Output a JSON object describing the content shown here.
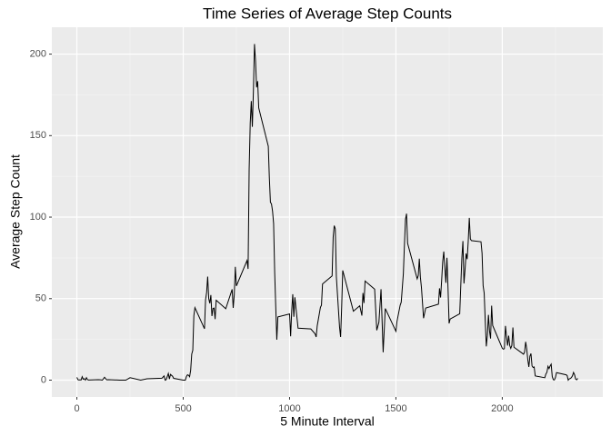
{
  "chart_data": {
    "type": "line",
    "title": "Time Series of Average Step Counts",
    "xlabel": "5 Minute Interval",
    "ylabel": "Average Step Count",
    "x": [
      0,
      5,
      10,
      15,
      20,
      25,
      30,
      35,
      40,
      45,
      50,
      55,
      100,
      110,
      120,
      130,
      140,
      150,
      200,
      230,
      250,
      300,
      330,
      400,
      410,
      415,
      420,
      430,
      435,
      440,
      450,
      455,
      500,
      510,
      515,
      520,
      525,
      530,
      535,
      540,
      545,
      550,
      555,
      600,
      605,
      610,
      615,
      620,
      625,
      630,
      635,
      640,
      645,
      650,
      655,
      700,
      730,
      735,
      740,
      745,
      750,
      800,
      805,
      810,
      815,
      820,
      825,
      830,
      835,
      840,
      845,
      850,
      855,
      900,
      905,
      910,
      915,
      920,
      925,
      930,
      935,
      940,
      945,
      1000,
      1005,
      1010,
      1015,
      1020,
      1025,
      1030,
      1040,
      1100,
      1120,
      1125,
      1130,
      1145,
      1150,
      1155,
      1200,
      1205,
      1210,
      1215,
      1220,
      1235,
      1240,
      1245,
      1250,
      1300,
      1330,
      1340,
      1345,
      1350,
      1355,
      1400,
      1410,
      1420,
      1430,
      1440,
      1450,
      1500,
      1505,
      1520,
      1525,
      1535,
      1540,
      1545,
      1550,
      1555,
      1600,
      1605,
      1610,
      1615,
      1620,
      1630,
      1640,
      1700,
      1705,
      1710,
      1715,
      1720,
      1725,
      1730,
      1735,
      1740,
      1745,
      1750,
      1755,
      1800,
      1805,
      1810,
      1815,
      1820,
      1825,
      1830,
      1835,
      1840,
      1845,
      1850,
      1855,
      1900,
      1905,
      1910,
      1915,
      1920,
      1925,
      1930,
      1935,
      1940,
      1945,
      1950,
      1955,
      2000,
      2005,
      2010,
      2015,
      2020,
      2025,
      2030,
      2035,
      2040,
      2045,
      2050,
      2055,
      2100,
      2105,
      2110,
      2115,
      2120,
      2125,
      2130,
      2135,
      2140,
      2145,
      2150,
      2155,
      2200,
      2205,
      2210,
      2215,
      2220,
      2225,
      2230,
      2235,
      2240,
      2245,
      2250,
      2255,
      2300,
      2305,
      2310,
      2315,
      2320,
      2325,
      2330,
      2335,
      2340,
      2345,
      2350,
      2355
    ],
    "series": [
      {
        "name": "Average Step Count",
        "color": "#000000",
        "values": [
          1.7,
          0.3,
          0.1,
          0.2,
          0.1,
          2.1,
          0.5,
          0.9,
          0,
          1.5,
          0.3,
          0.1,
          0.3,
          0.2,
          0,
          1.8,
          0.2,
          0.3,
          0,
          0,
          1.5,
          0,
          0.8,
          1.2,
          2.6,
          0,
          0.3,
          4.1,
          0.7,
          3.5,
          2.4,
          1.1,
          0,
          0,
          2.2,
          3.3,
          3,
          2.1,
          6.1,
          16,
          18.3,
          39.5,
          44.5,
          31.5,
          49.3,
          53.8,
          63.5,
          50,
          47.1,
          52.2,
          39.3,
          44,
          44.2,
          37.4,
          49,
          43.8,
          55.7,
          44.3,
          52.3,
          69.5,
          57.8,
          73.4,
          68.2,
          129.4,
          157.5,
          171.2,
          155.4,
          177.3,
          206.2,
          195.9,
          179.6,
          183.4,
          167,
          143.5,
          124,
          109.1,
          108.1,
          103.7,
          96,
          66.2,
          45.2,
          24.8,
          38.8,
          40.6,
          26.9,
          42.4,
          52.7,
          38.9,
          50.8,
          44.3,
          31.9,
          31.4,
          28.4,
          26.5,
          33.3,
          44.6,
          46,
          59,
          63.9,
          87.7,
          94.8,
          92.8,
          63.4,
          32.5,
          26.5,
          45,
          67.3,
          42.3,
          45.6,
          39.6,
          53.5,
          47.3,
          60.8,
          55.8,
          30.6,
          35.5,
          55.8,
          17.1,
          43.9,
          30,
          36,
          46,
          47.8,
          65.3,
          82.9,
          98.7,
          102.1,
          83.9,
          62.1,
          64.1,
          74.5,
          63.2,
          56.9,
          38,
          44.2,
          46.6,
          56.3,
          50.7,
          61.2,
          72.7,
          78.9,
          68.9,
          59.7,
          75.1,
          56.5,
          34.8,
          37.5,
          40.7,
          58,
          74.7,
          85.3,
          59.3,
          67.8,
          77.7,
          74.2,
          85.3,
          99.5,
          86.6,
          85.6,
          84.9,
          77.8,
          58,
          53.4,
          36.3,
          20.7,
          27.4,
          40,
          30.2,
          25.5,
          45.7,
          33.5,
          19.6,
          19,
          19.3,
          33.3,
          26.8,
          21.2,
          27.3,
          21.3,
          19.5,
          21.3,
          32.3,
          20.2,
          15.9,
          17.2,
          23.5,
          19.2,
          12.5,
          8.1,
          14.7,
          16.3,
          8.7,
          7.8,
          8.1,
          2.6,
          1.5,
          3.7,
          4.8,
          8.5,
          7.1,
          8.7,
          9.8,
          2.2,
          0.3,
          0.1,
          1.6,
          4.6,
          3.3,
          2.8,
          0,
          0.8,
          1,
          1.6,
          2.6,
          4.7,
          3.3,
          0.6,
          0.2,
          1.1
        ]
      }
    ],
    "xlim": [
      -117.75,
      2472.75
    ],
    "ylim": [
      -10.31,
      216.48
    ],
    "xticks": [
      0,
      500,
      1000,
      1500,
      2000
    ],
    "yticks": [
      0,
      50,
      100,
      150,
      200
    ],
    "x_minor_grid": [
      250,
      750,
      1250,
      1750,
      2250
    ],
    "y_minor_grid": [
      25,
      75,
      125,
      175
    ],
    "grid": true
  }
}
